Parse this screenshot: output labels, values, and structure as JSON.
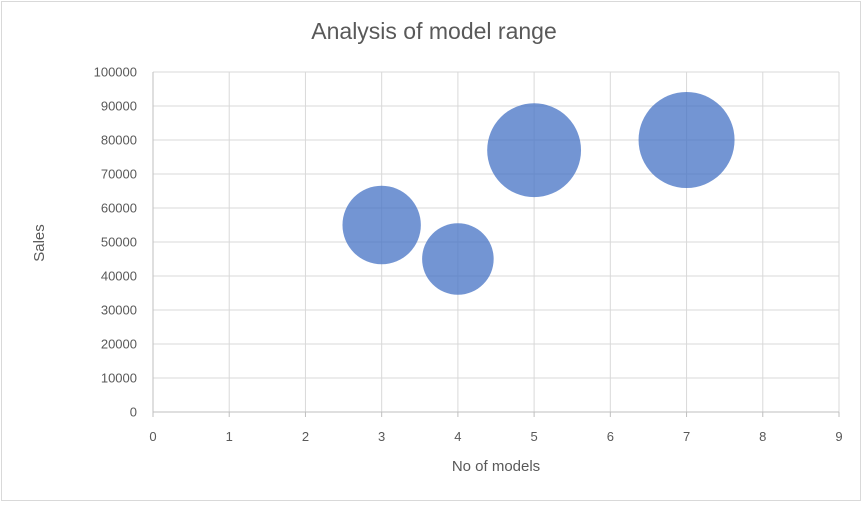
{
  "chart_data": {
    "type": "bubble",
    "title": "Analysis of model range",
    "xlabel": "No of models",
    "ylabel": "Sales",
    "xlim": [
      0,
      9
    ],
    "ylim": [
      0,
      100000
    ],
    "x_ticks": [
      "0",
      "1",
      "2",
      "3",
      "4",
      "5",
      "6",
      "7",
      "8",
      "9"
    ],
    "y_ticks": [
      "0",
      "10000",
      "20000",
      "30000",
      "40000",
      "50000",
      "60000",
      "70000",
      "80000",
      "90000",
      "100000"
    ],
    "grid": true,
    "legend": "none",
    "color": "#4472C4",
    "series": [
      {
        "points": [
          {
            "x": 3,
            "y": 55000,
            "size": 1.5
          },
          {
            "x": 4,
            "y": 45000,
            "size": 1.25
          },
          {
            "x": 5,
            "y": 77000,
            "size": 2.15
          },
          {
            "x": 7,
            "y": 80000,
            "size": 2.25
          }
        ]
      }
    ]
  }
}
